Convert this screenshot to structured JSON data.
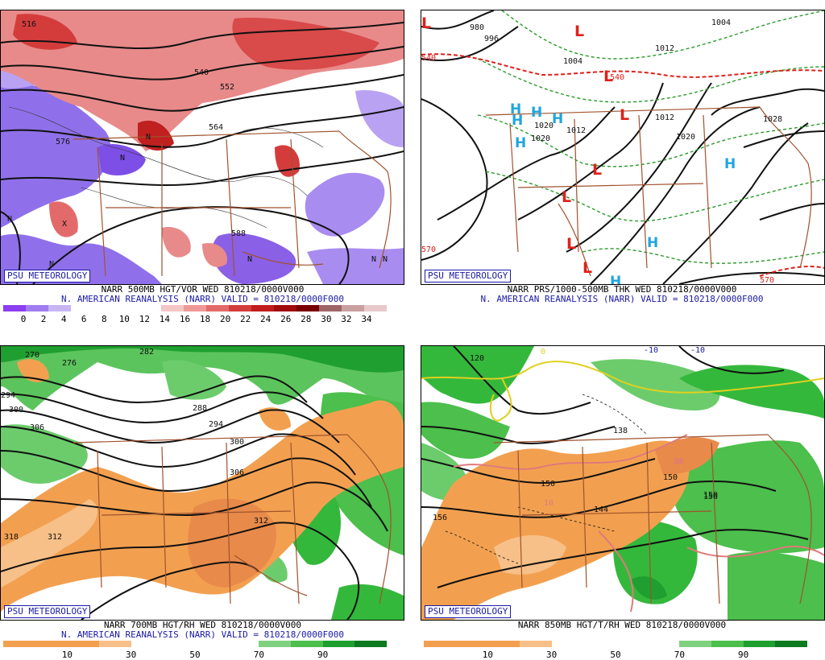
{
  "panels": [
    {
      "id": "p1",
      "badge": "PSU METEOROLOGY",
      "caption1": "NARR 500MB HGT/VOR WED 810218/0000V000",
      "caption2": "N. AMERICAN REANALYSIS (NARR) VALID = 810218/0000F000",
      "contour_labels": [
        "516",
        "540",
        "552",
        "564",
        "576",
        "588",
        "N",
        "N",
        "N",
        "X",
        "N",
        "N",
        "N",
        "N"
      ],
      "colorbar": {
        "colors": [
          "#8b3ff0",
          "#a07cf0",
          "#c8b4f2",
          "#ffffff",
          "#ffffff",
          "#ffffff",
          "#ffffff",
          "#f5c6c6",
          "#ef9898",
          "#e46a6a",
          "#d53c3c",
          "#c01c1c",
          "#a00c0c",
          "#7a0000",
          "#9e6666",
          "#c9a0a0",
          "#e7c9c9"
        ],
        "ticks": [
          "0",
          "2",
          "4",
          "6",
          "8",
          "10",
          "12",
          "14",
          "16",
          "18",
          "20",
          "22",
          "24",
          "26",
          "28",
          "30",
          "32",
          "34"
        ]
      }
    },
    {
      "id": "p2",
      "badge": "PSU METEOROLOGY",
      "caption1": "NARR PRS/1000-500MB THK WED 810218/0000V000",
      "caption2": "N. AMERICAN REANALYSIS (NARR) VALID = 810218/0000F000",
      "contour_labels": [
        "980",
        "996",
        "1004",
        "1004",
        "1012",
        "1012",
        "1012",
        "1020",
        "1020",
        "1020",
        "1028",
        "540",
        "540",
        "570",
        "570"
      ],
      "highs": [
        "H",
        "H",
        "H",
        "H",
        "H",
        "H",
        "H",
        "H"
      ],
      "lows": [
        "L",
        "L",
        "L",
        "L",
        "L",
        "L",
        "L",
        "L"
      ]
    },
    {
      "id": "p3",
      "badge": "PSU METEOROLOGY",
      "caption1": "NARR 700MB HGT/RH WED 810218/0000V000",
      "caption2": "N. AMERICAN REANALYSIS (NARR) VALID = 810218/0000F000",
      "contour_labels": [
        "270",
        "276",
        "282",
        "288",
        "294",
        "294",
        "300",
        "300",
        "306",
        "306",
        "312",
        "312",
        "318"
      ],
      "colorbar": {
        "colors": [
          "#f2a050",
          "#f2a050",
          "#f2a050",
          "#f7c088",
          "#ffffff",
          "#ffffff",
          "#ffffff",
          "#ffffff",
          "#7fd17f",
          "#4cbf4c",
          "#1f9f2f",
          "#0d7a1f"
        ],
        "ticks": [
          "10",
          "30",
          "50",
          "70",
          "90"
        ]
      }
    },
    {
      "id": "p4",
      "badge": "PSU METEOROLOGY",
      "caption1": "NARR 850MB HGT/T/RH WED 810218/0000V000",
      "caption2": "",
      "contour_labels": [
        "120",
        "138",
        "150",
        "150",
        "150",
        "156",
        "156",
        "144",
        "10",
        "10",
        "10",
        "-10",
        "-10",
        "0"
      ],
      "colorbar": {
        "colors": [
          "#f2a050",
          "#f2a050",
          "#f2a050",
          "#f7c088",
          "#ffffff",
          "#ffffff",
          "#ffffff",
          "#ffffff",
          "#7fd17f",
          "#4cbf4c",
          "#1f9f2f",
          "#0d7a1f"
        ],
        "ticks": [
          "10",
          "30",
          "50",
          "70",
          "90"
        ]
      }
    }
  ],
  "colors": {
    "badge": "#1a1aa6",
    "caption_blue": "#1a1aa6",
    "border": "#a0522d",
    "low": "#e0201a",
    "high": "#1fa6e0",
    "thickness": "#2a9a2a",
    "purple": "#8b5fe0",
    "red": "#d83a3a",
    "orange": "#f2a050",
    "green": "#34b83c",
    "yellow": "#e0d020",
    "pink": "#e07a7a"
  }
}
